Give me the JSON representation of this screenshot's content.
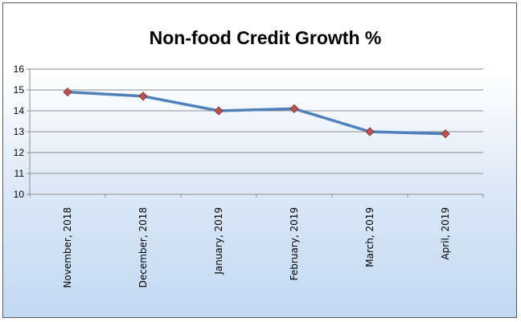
{
  "chart_data": {
    "type": "line",
    "title": "Non-food Credit Growth %",
    "xlabel": "",
    "ylabel": "",
    "categories": [
      "November, 2018",
      "December, 2018",
      "January, 2019",
      "February, 2019",
      "March, 2019",
      "April, 2019"
    ],
    "series": [
      {
        "values": [
          14.9,
          14.7,
          14.0,
          14.1,
          13.0,
          12.9
        ]
      }
    ],
    "ylim": [
      10,
      16
    ],
    "yticks": [
      "10",
      "11",
      "12",
      "13",
      "14",
      "15",
      "16"
    ],
    "grid": true,
    "legend": "none",
    "colors": {
      "line": "#4f81bd",
      "marker": "#c0504d",
      "marker_edge": "#7a2b2a",
      "grid": "#8c8c8c"
    }
  }
}
